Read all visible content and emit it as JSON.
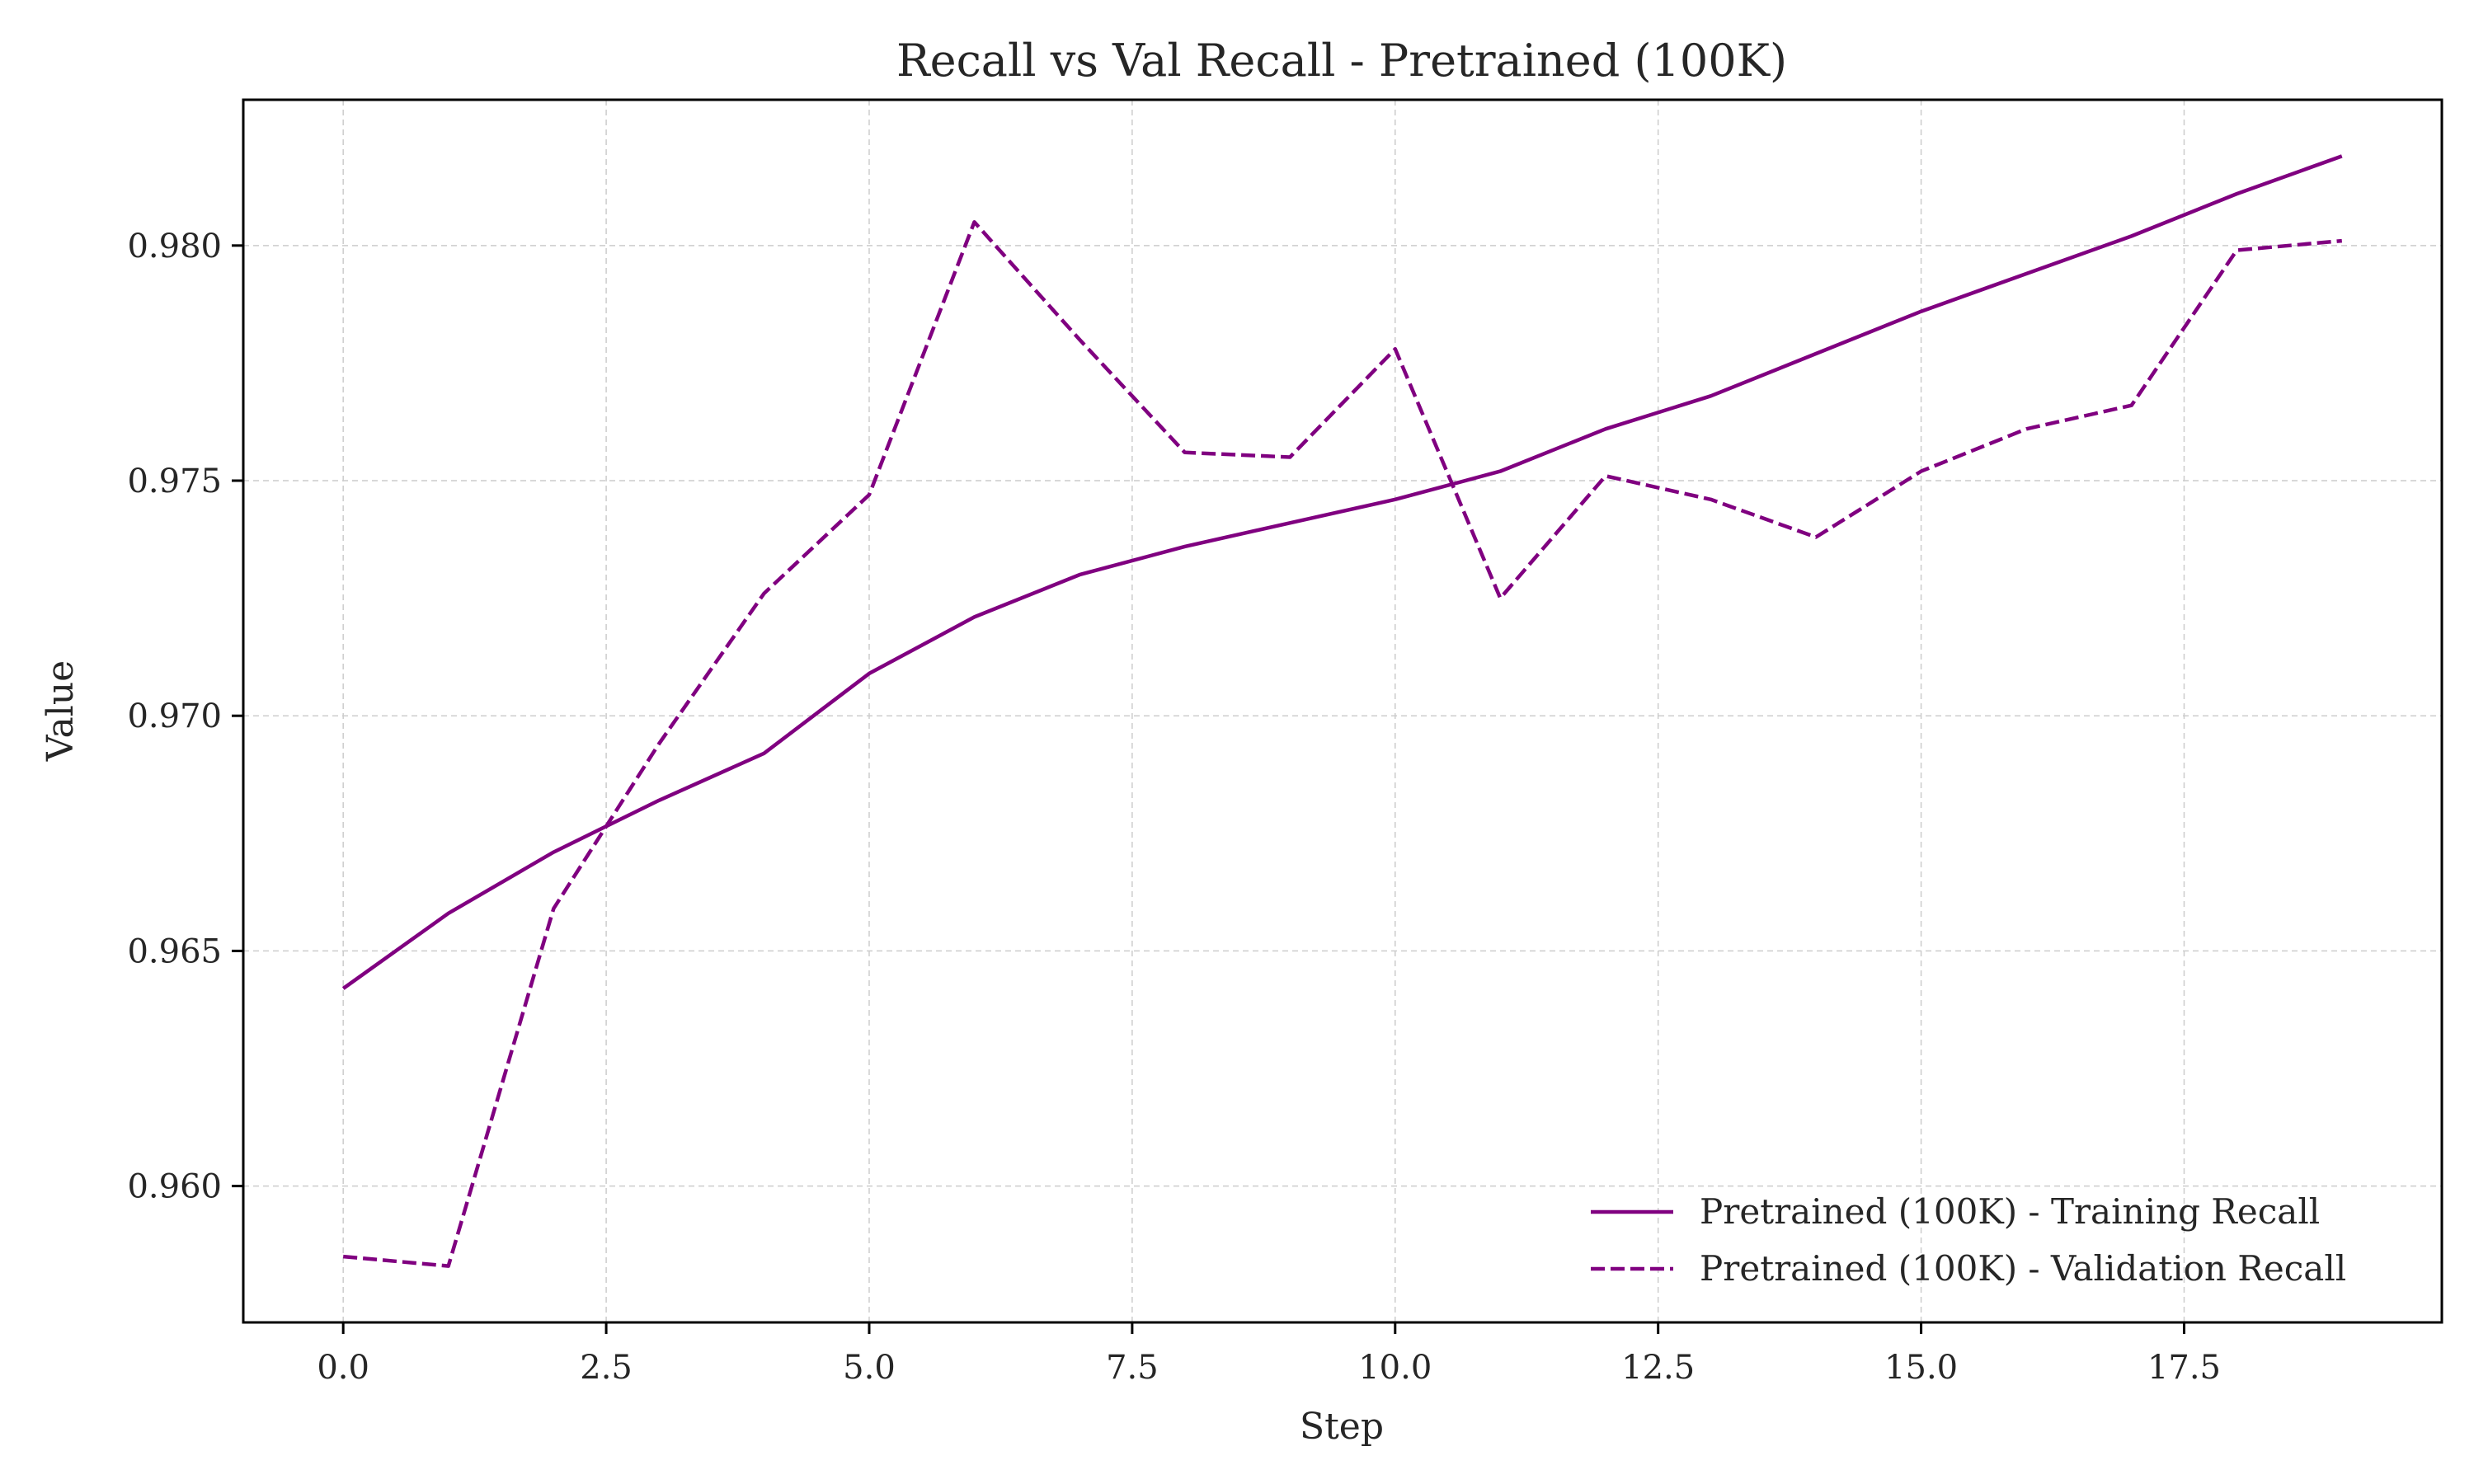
{
  "chart_data": {
    "type": "line",
    "title": "Recall vs Val Recall - Pretrained (100K)",
    "xlabel": "Step",
    "ylabel": "Value",
    "x": [
      0,
      1,
      2,
      3,
      4,
      5,
      6,
      7,
      8,
      9,
      10,
      11,
      12,
      13,
      14,
      15,
      16,
      17,
      18,
      19
    ],
    "xlim": [
      -0.95,
      19.95
    ],
    "ylim": [
      0.9571,
      0.9831
    ],
    "xticks": [
      0.0,
      2.5,
      5.0,
      7.5,
      10.0,
      12.5,
      15.0,
      17.5
    ],
    "xtick_labels": [
      "0.0",
      "2.5",
      "5.0",
      "7.5",
      "10.0",
      "12.5",
      "15.0",
      "17.5"
    ],
    "yticks": [
      0.96,
      0.965,
      0.97,
      0.975,
      0.98
    ],
    "ytick_labels": [
      "0.960",
      "0.965",
      "0.970",
      "0.975",
      "0.980"
    ],
    "grid": true,
    "legend_position": "lower-right",
    "series": [
      {
        "name": "Pretrained (100K) - Training Recall",
        "style": "solid",
        "color": "#800080",
        "values": [
          0.9642,
          0.9658,
          0.9671,
          0.9682,
          0.9692,
          0.9709,
          0.9721,
          0.973,
          0.9736,
          0.9741,
          0.9746,
          0.9752,
          0.9761,
          0.9768,
          0.9777,
          0.9786,
          0.9794,
          0.9802,
          0.9811,
          0.9819
        ]
      },
      {
        "name": "Pretrained (100K) - Validation Recall",
        "style": "dashed",
        "color": "#800080",
        "values": [
          0.9585,
          0.9583,
          0.9659,
          0.9694,
          0.9726,
          0.9747,
          0.9805,
          0.978,
          0.9756,
          0.9755,
          0.9778,
          0.9725,
          0.9751,
          0.9746,
          0.9738,
          0.9752,
          0.9761,
          0.9766,
          0.9799,
          0.9801
        ]
      }
    ]
  }
}
